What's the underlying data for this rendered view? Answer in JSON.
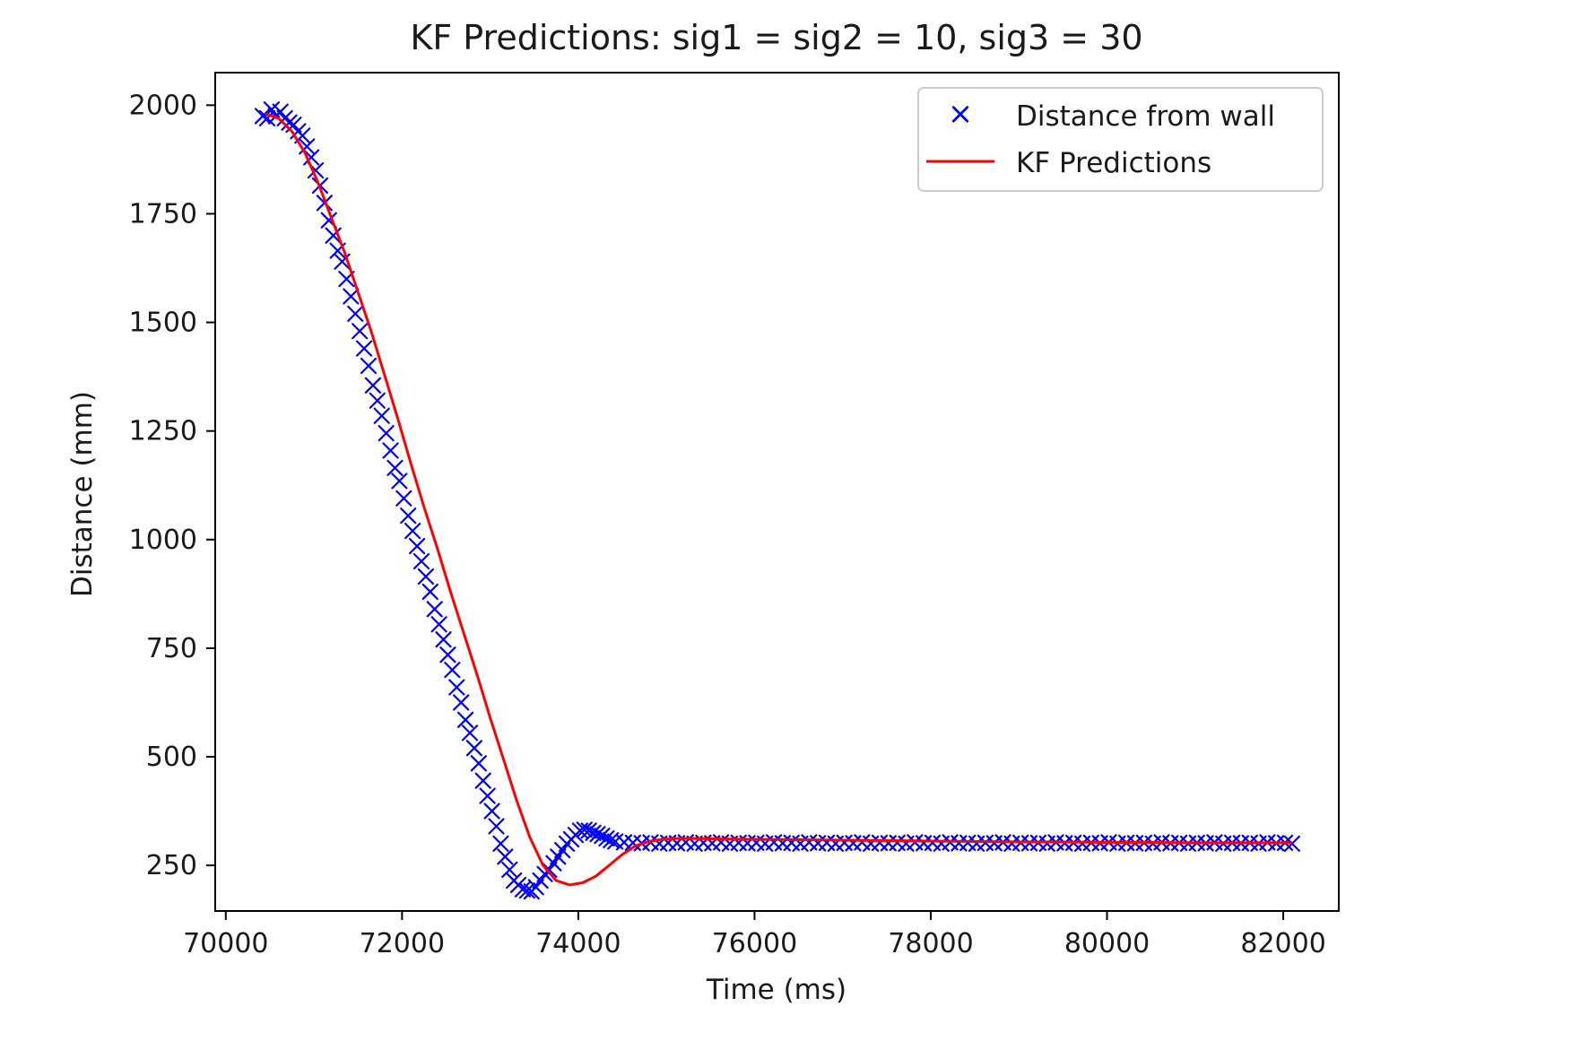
{
  "chart_data": {
    "type": "scatter",
    "title": "KF Predictions: sig1 = sig2 = 10, sig3 = 30",
    "xlabel": "Time (ms)",
    "ylabel": "Distance (mm)",
    "xlim": [
      69880,
      82630
    ],
    "ylim": [
      145,
      2075
    ],
    "x_ticks": [
      70000,
      72000,
      74000,
      76000,
      78000,
      80000,
      82000
    ],
    "y_ticks": [
      250,
      500,
      750,
      1000,
      1250,
      1500,
      1750,
      2000
    ],
    "grid": false,
    "legend_position": "upper right",
    "legend": [
      {
        "label": "Distance from wall",
        "marker": "x",
        "color": "#0000ff"
      },
      {
        "label": "KF Predictions",
        "marker": "line",
        "color": "#ff0000"
      }
    ],
    "series": [
      {
        "name": "Distance from wall",
        "style": "markers-x",
        "color": "#0000ff",
        "points": [
          [
            70420,
            1975
          ],
          [
            70470,
            1970
          ],
          [
            70520,
            1990
          ],
          [
            70570,
            1975
          ],
          [
            70620,
            1985
          ],
          [
            70670,
            1970
          ],
          [
            70720,
            1960
          ],
          [
            70770,
            1955
          ],
          [
            70820,
            1940
          ],
          [
            70870,
            1930
          ],
          [
            70920,
            1905
          ],
          [
            70970,
            1880
          ],
          [
            71020,
            1850
          ],
          [
            71070,
            1815
          ],
          [
            71120,
            1775
          ],
          [
            71170,
            1735
          ],
          [
            71220,
            1700
          ],
          [
            71270,
            1665
          ],
          [
            71320,
            1640
          ],
          [
            71370,
            1600
          ],
          [
            71420,
            1560
          ],
          [
            71470,
            1520
          ],
          [
            71520,
            1480
          ],
          [
            71570,
            1440
          ],
          [
            71620,
            1400
          ],
          [
            71670,
            1355
          ],
          [
            71720,
            1320
          ],
          [
            71770,
            1285
          ],
          [
            71820,
            1245
          ],
          [
            71870,
            1205
          ],
          [
            71920,
            1165
          ],
          [
            71970,
            1135
          ],
          [
            72020,
            1095
          ],
          [
            72070,
            1055
          ],
          [
            72120,
            1020
          ],
          [
            72170,
            985
          ],
          [
            72220,
            950
          ],
          [
            72270,
            915
          ],
          [
            72320,
            880
          ],
          [
            72370,
            840
          ],
          [
            72420,
            805
          ],
          [
            72470,
            770
          ],
          [
            72520,
            735
          ],
          [
            72570,
            700
          ],
          [
            72620,
            660
          ],
          [
            72670,
            625
          ],
          [
            72720,
            585
          ],
          [
            72770,
            555
          ],
          [
            72820,
            520
          ],
          [
            72870,
            485
          ],
          [
            72920,
            445
          ],
          [
            72970,
            410
          ],
          [
            73020,
            375
          ],
          [
            73070,
            340
          ],
          [
            73120,
            300
          ],
          [
            73170,
            270
          ],
          [
            73220,
            240
          ],
          [
            73270,
            215
          ],
          [
            73320,
            205
          ],
          [
            73370,
            195
          ],
          [
            73420,
            192
          ],
          [
            73470,
            190
          ],
          [
            73520,
            200
          ],
          [
            73570,
            215
          ],
          [
            73620,
            230
          ],
          [
            73670,
            240
          ],
          [
            73720,
            255
          ],
          [
            73770,
            270
          ],
          [
            73820,
            285
          ],
          [
            73870,
            300
          ],
          [
            73920,
            310
          ],
          [
            73970,
            320
          ],
          [
            74020,
            330
          ],
          [
            74070,
            332
          ],
          [
            74120,
            330
          ],
          [
            74170,
            325
          ],
          [
            74220,
            322
          ],
          [
            74270,
            318
          ],
          [
            74320,
            312
          ],
          [
            74370,
            308
          ],
          [
            74420,
            305
          ],
          [
            74520,
            303
          ],
          [
            74620,
            302
          ],
          [
            74720,
            301
          ],
          [
            74820,
            303
          ],
          [
            74920,
            300
          ],
          [
            75020,
            302
          ],
          [
            75120,
            301
          ],
          [
            75220,
            303
          ],
          [
            75320,
            300
          ],
          [
            75420,
            302
          ],
          [
            75520,
            301
          ],
          [
            75620,
            303
          ],
          [
            75720,
            300
          ],
          [
            75820,
            302
          ],
          [
            75920,
            301
          ],
          [
            76020,
            302
          ],
          [
            76120,
            300
          ],
          [
            76220,
            303
          ],
          [
            76320,
            301
          ],
          [
            76420,
            302
          ],
          [
            76520,
            300
          ],
          [
            76620,
            303
          ],
          [
            76720,
            301
          ],
          [
            76820,
            302
          ],
          [
            76920,
            300
          ],
          [
            77020,
            302
          ],
          [
            77120,
            301
          ],
          [
            77220,
            303
          ],
          [
            77320,
            300
          ],
          [
            77420,
            302
          ],
          [
            77520,
            301
          ],
          [
            77620,
            302
          ],
          [
            77720,
            300
          ],
          [
            77820,
            303
          ],
          [
            77920,
            301
          ],
          [
            78020,
            302
          ],
          [
            78120,
            300
          ],
          [
            78220,
            303
          ],
          [
            78320,
            301
          ],
          [
            78420,
            302
          ],
          [
            78520,
            300
          ],
          [
            78620,
            302
          ],
          [
            78720,
            301
          ],
          [
            78820,
            303
          ],
          [
            78920,
            300
          ],
          [
            79020,
            302
          ],
          [
            79120,
            301
          ],
          [
            79220,
            302
          ],
          [
            79320,
            300
          ],
          [
            79420,
            303
          ],
          [
            79520,
            301
          ],
          [
            79620,
            302
          ],
          [
            79720,
            300
          ],
          [
            79820,
            302
          ],
          [
            79920,
            301
          ],
          [
            80020,
            303
          ],
          [
            80120,
            300
          ],
          [
            80220,
            302
          ],
          [
            80320,
            301
          ],
          [
            80420,
            302
          ],
          [
            80520,
            300
          ],
          [
            80620,
            303
          ],
          [
            80720,
            301
          ],
          [
            80820,
            302
          ],
          [
            80920,
            300
          ],
          [
            81020,
            302
          ],
          [
            81120,
            301
          ],
          [
            81220,
            303
          ],
          [
            81320,
            300
          ],
          [
            81420,
            302
          ],
          [
            81520,
            301
          ],
          [
            81620,
            302
          ],
          [
            81720,
            300
          ],
          [
            81820,
            303
          ],
          [
            81920,
            301
          ],
          [
            82020,
            302
          ],
          [
            82100,
            300
          ]
        ]
      },
      {
        "name": "KF Predictions",
        "style": "line",
        "color": "#ff0000",
        "points": [
          [
            70450,
            1980
          ],
          [
            70600,
            1970
          ],
          [
            70750,
            1940
          ],
          [
            70900,
            1890
          ],
          [
            71050,
            1820
          ],
          [
            71200,
            1740
          ],
          [
            71350,
            1660
          ],
          [
            71500,
            1570
          ],
          [
            71650,
            1480
          ],
          [
            71800,
            1380
          ],
          [
            71950,
            1280
          ],
          [
            72100,
            1175
          ],
          [
            72250,
            1075
          ],
          [
            72400,
            980
          ],
          [
            72550,
            880
          ],
          [
            72700,
            785
          ],
          [
            72850,
            690
          ],
          [
            73000,
            590
          ],
          [
            73150,
            495
          ],
          [
            73300,
            400
          ],
          [
            73450,
            315
          ],
          [
            73600,
            250
          ],
          [
            73750,
            215
          ],
          [
            73900,
            205
          ],
          [
            74050,
            210
          ],
          [
            74200,
            225
          ],
          [
            74350,
            250
          ],
          [
            74500,
            275
          ],
          [
            74650,
            295
          ],
          [
            74800,
            305
          ],
          [
            74950,
            310
          ],
          [
            75100,
            312
          ],
          [
            75300,
            312
          ],
          [
            75600,
            311
          ],
          [
            76000,
            310
          ],
          [
            76500,
            309
          ],
          [
            77000,
            308
          ],
          [
            77500,
            307
          ],
          [
            78000,
            306
          ],
          [
            78500,
            305
          ],
          [
            79000,
            304
          ],
          [
            79500,
            304
          ],
          [
            80000,
            303
          ],
          [
            80500,
            303
          ],
          [
            81000,
            302
          ],
          [
            81500,
            302
          ],
          [
            82100,
            302
          ]
        ]
      }
    ]
  }
}
